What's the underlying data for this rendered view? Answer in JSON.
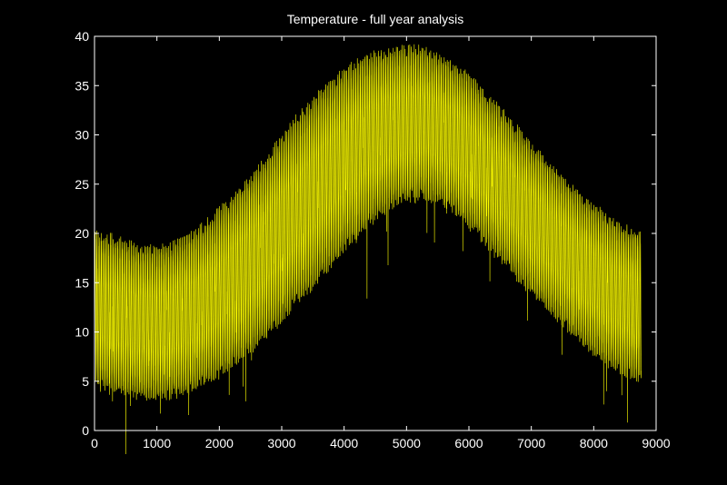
{
  "chart_data": {
    "type": "line",
    "title": "Temperature - full year analysis",
    "xlabel": "",
    "ylabel": "",
    "xlim": [
      0,
      9000
    ],
    "ylim": [
      0,
      40
    ],
    "x_ticks": [
      0,
      1000,
      2000,
      3000,
      4000,
      5000,
      6000,
      7000,
      8000,
      9000
    ],
    "y_ticks": [
      0,
      5,
      10,
      15,
      20,
      25,
      30,
      35,
      40
    ],
    "grid": false,
    "background_color": "#000000",
    "axes_color": "#ffffff",
    "series": [
      {
        "color": "#ffff00",
        "x_range": [
          1,
          8760
        ],
        "sampling": "hourly",
        "envelope": {
          "x": [
            0,
            250,
            500,
            750,
            1000,
            1250,
            1500,
            1750,
            2000,
            2250,
            2500,
            2750,
            3000,
            3250,
            3500,
            3750,
            4000,
            4250,
            4500,
            4750,
            5000,
            5250,
            5500,
            5750,
            6000,
            6250,
            6500,
            6750,
            7000,
            7250,
            7500,
            7750,
            8000,
            8250,
            8500,
            8750
          ],
          "min": [
            4.8,
            4.5,
            4.0,
            3.7,
            3.6,
            3.8,
            4.3,
            5.0,
            6.0,
            7.1,
            8.4,
            9.9,
            11.5,
            13.3,
            15.0,
            16.9,
            18.7,
            20.4,
            21.8,
            23.0,
            23.8,
            24.0,
            23.6,
            22.6,
            21.1,
            19.4,
            17.7,
            16.0,
            14.3,
            12.7,
            11.1,
            9.6,
            8.3,
            7.0,
            6.0,
            5.3
          ],
          "max": [
            19.8,
            19.3,
            18.8,
            18.3,
            18.2,
            18.6,
            19.4,
            20.5,
            22.0,
            23.7,
            25.5,
            27.5,
            29.5,
            31.5,
            33.3,
            34.9,
            36.3,
            37.3,
            38.0,
            38.4,
            38.6,
            38.4,
            37.8,
            36.9,
            35.6,
            34.0,
            32.3,
            30.5,
            28.7,
            27.0,
            25.4,
            23.8,
            22.5,
            21.3,
            20.4,
            19.9
          ]
        }
      }
    ]
  }
}
